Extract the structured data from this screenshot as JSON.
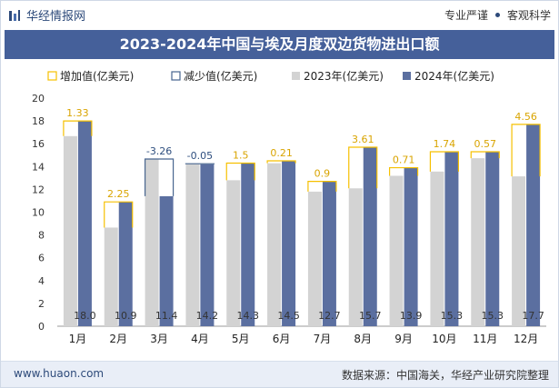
{
  "header": {
    "brand": "华经情报网",
    "tagline_left": "专业严谨",
    "tagline_right": "客观科学"
  },
  "footer": {
    "website": "www.huaon.com",
    "source": "数据来源：中国海关，华经产业研究院整理"
  },
  "colors": {
    "bar2023": "#d3d3d3",
    "bar2024": "#5b6fa0",
    "increase": "#f6c000",
    "decrease": "#47658f",
    "title_bg": "#45609a"
  },
  "chart_data": {
    "type": "bar",
    "title": "2023-2024年中国与埃及月度双边货物进出口额",
    "xlabel": "",
    "ylabel": "",
    "ylim": [
      0,
      20
    ],
    "yticks": [
      0,
      2,
      4,
      6,
      8,
      10,
      12,
      14,
      16,
      18,
      20
    ],
    "categories": [
      "1月",
      "2月",
      "3月",
      "4月",
      "5月",
      "6月",
      "7月",
      "8月",
      "9月",
      "10月",
      "11月",
      "12月"
    ],
    "legend": [
      "增加值(亿美元)",
      "减少值(亿美元)",
      "2023年(亿美元)",
      "2024年(亿美元)"
    ],
    "series": [
      {
        "name": "2023年(亿美元)",
        "values": [
          16.67,
          8.65,
          14.66,
          14.25,
          12.8,
          14.29,
          11.8,
          12.09,
          13.19,
          13.56,
          14.73,
          13.14
        ]
      },
      {
        "name": "2024年(亿美元)",
        "values": [
          18.0,
          10.9,
          11.4,
          14.2,
          14.3,
          14.5,
          12.7,
          15.7,
          13.9,
          15.3,
          15.3,
          17.7
        ]
      }
    ],
    "change_labels": [
      "1.33",
      "2.25",
      "-3.26",
      "-0.05",
      "1.5",
      "0.21",
      "0.9",
      "3.61",
      "0.71",
      "1.74",
      "0.57",
      "4.56"
    ],
    "value_labels_2024": [
      "18.0",
      "10.9",
      "11.4",
      "14.2",
      "14.3",
      "14.5",
      "12.7",
      "15.7",
      "13.9",
      "15.3",
      "15.3",
      "17.7"
    ]
  }
}
